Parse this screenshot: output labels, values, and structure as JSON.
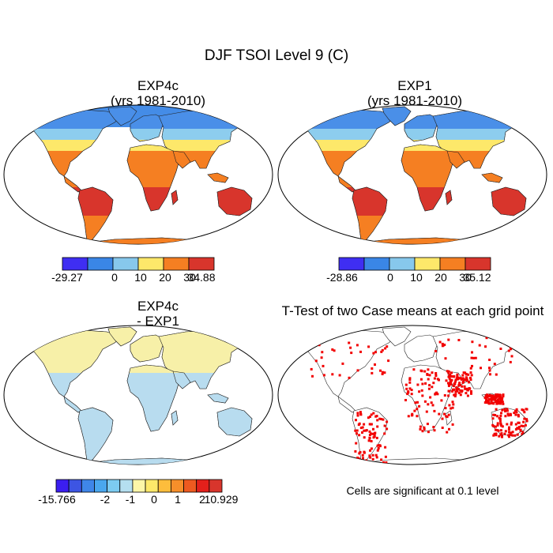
{
  "figure": {
    "title": "DJF TSOI Level 9 (C)",
    "note": "Cells are significant at 0.1 level"
  },
  "panels": [
    {
      "id": "tl",
      "title_line1": "EXP4c",
      "title_line2": "(yrs 1981-2010)"
    },
    {
      "id": "tr",
      "title_line1": "EXP1",
      "title_line2": "(yrs 1981-2010)"
    },
    {
      "id": "bl",
      "title_line1": "EXP4c",
      "title_line2": "- EXP1"
    },
    {
      "id": "br",
      "title_line1": "T-Test of two Case means at each grid point",
      "title_line2": ""
    }
  ],
  "colorbars": {
    "tl": {
      "colors": [
        "#3f2ef2",
        "#3a86e6",
        "#87c8ec",
        "#fde86a",
        "#f57f22",
        "#d8352c"
      ],
      "labels": [
        "-29.27",
        "0",
        "10",
        "20",
        "30",
        "34.88"
      ]
    },
    "tr": {
      "colors": [
        "#3f2ef2",
        "#3a86e6",
        "#87c8ec",
        "#fde86a",
        "#f57f22",
        "#d8352c"
      ],
      "labels": [
        "-28.86",
        "0",
        "10",
        "20",
        "30",
        "35.12"
      ]
    },
    "bl": {
      "colors": [
        "#3b1ef0",
        "#3d55e3",
        "#3f86e8",
        "#4aa7ee",
        "#7ccbf1",
        "#b5dff0",
        "#fdf6a8",
        "#fde86a",
        "#fdbd3c",
        "#f68f2a",
        "#ee5a20",
        "#e3201b",
        "#d8352c"
      ],
      "labels": [
        "-15.766",
        "-2",
        "-1",
        "0",
        "1",
        "2",
        "10.929"
      ]
    }
  },
  "style": {
    "cold": "#4a8fe8",
    "cool": "#8dcdee",
    "yellow": "#fde86a",
    "orange": "#f57f22",
    "red": "#d8352c",
    "diff_blue": "#b8dcef",
    "diff_yellow": "#f7f0a8",
    "sig_red": "#f20000"
  }
}
